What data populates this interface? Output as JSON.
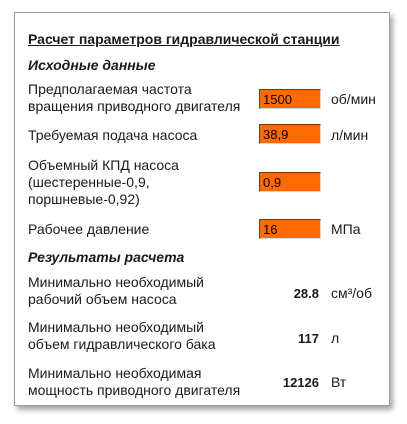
{
  "title": "Расчет параметров гидравлической станции",
  "inputs": {
    "heading": "Исходные данные",
    "rows": [
      {
        "label_line1": "Предполагаемая частота",
        "label_line2": "вращения приводного двигателя",
        "value": "1500",
        "unit": "об/мин"
      },
      {
        "label_line1": "Требуемая подача насоса",
        "value": "38,9",
        "unit": "л/мин"
      },
      {
        "label_line1": "Объемный КПД насоса",
        "label_line2": "(шестеренные-0,9,",
        "label_line3": "поршневые-0,92)",
        "value": "0,9",
        "unit": ""
      },
      {
        "label_line1": "Рабочее давление",
        "value": "16",
        "unit": "МПа"
      }
    ]
  },
  "results": {
    "heading": "Результаты расчета",
    "rows": [
      {
        "label_line1": "Минимально необходимый",
        "label_line2": "рабочий объем насоса",
        "value": "28.8",
        "unit": "см³/об"
      },
      {
        "label_line1": "Минимально необходимый",
        "label_line2": "объем гидравлического бака",
        "value": "117",
        "unit": "л"
      },
      {
        "label_line1": "Минимально необходимая",
        "label_line2": "мощность приводного двигателя",
        "value": "12126",
        "unit": "Вт"
      }
    ]
  },
  "colors": {
    "input_fill": "#ff6a00",
    "panel_border": "#9a9a9a"
  }
}
